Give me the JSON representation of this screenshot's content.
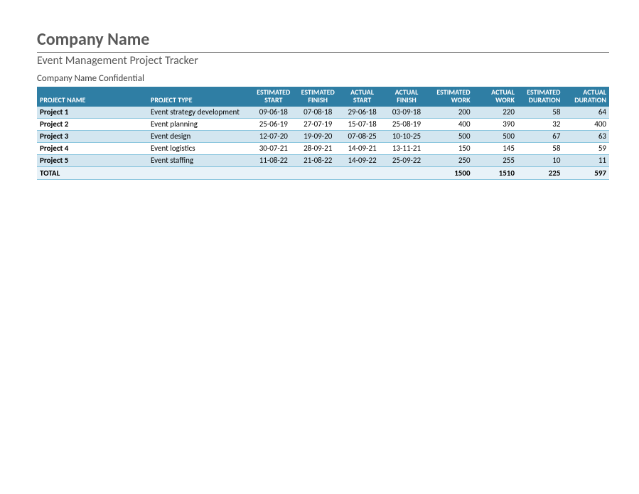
{
  "header": {
    "company": "Company Name",
    "subtitle": "Event Management Project Tracker",
    "confidential": "Company Name Confidential"
  },
  "colors": {
    "header_accent": "#595959",
    "table_header_bg": "#2f7ea4",
    "table_header_fg": "#ffffff",
    "row_odd_bg": "#d3e6f0",
    "row_even_bg": "#ffffff",
    "row_border": "#8cc6de",
    "total_bg": "#e8f2f8"
  },
  "typography": {
    "font_family": "Calibri",
    "company_fontsize_pt": 18,
    "subtitle_fontsize_pt": 12,
    "table_header_fontsize_pt": 7.5,
    "table_body_fontsize_pt": 8.5
  },
  "table": {
    "columns": [
      "PROJECT NAME",
      "PROJECT TYPE",
      "ESTIMATED START",
      "ESTIMATED FINISH",
      "ACTUAL START",
      "ACTUAL FINISH",
      "ESTIMATED WORK",
      "ACTUAL WORK",
      "ESTIMATED DURATION",
      "ACTUAL DURATION"
    ],
    "column_align": [
      "left",
      "left",
      "center",
      "center",
      "center",
      "center",
      "right",
      "right",
      "right",
      "right"
    ],
    "rows": [
      {
        "name": "Project 1",
        "type": "Event strategy development",
        "est_start": "09-06-18",
        "est_finish": "07-08-18",
        "act_start": "29-06-18",
        "act_finish": "03-09-18",
        "est_work": 200,
        "act_work": 220,
        "est_dur": 58,
        "act_dur": 64
      },
      {
        "name": "Project 2",
        "type": "Event planning",
        "est_start": "25-06-19",
        "est_finish": "27-07-19",
        "act_start": "15-07-18",
        "act_finish": "25-08-19",
        "est_work": 400,
        "act_work": 390,
        "est_dur": 32,
        "act_dur": 400
      },
      {
        "name": "Project 3",
        "type": "Event design",
        "est_start": "12-07-20",
        "est_finish": "19-09-20",
        "act_start": "07-08-25",
        "act_finish": "10-10-25",
        "est_work": 500,
        "act_work": 500,
        "est_dur": 67,
        "act_dur": 63
      },
      {
        "name": "Project 4",
        "type": "Event logistics",
        "est_start": "30-07-21",
        "est_finish": "28-09-21",
        "act_start": "14-09-21",
        "act_finish": "13-11-21",
        "est_work": 150,
        "act_work": 145,
        "est_dur": 58,
        "act_dur": 59
      },
      {
        "name": "Project 5",
        "type": "Event staffing",
        "est_start": "11-08-22",
        "est_finish": "21-08-22",
        "act_start": "14-09-22",
        "act_finish": "25-09-22",
        "est_work": 250,
        "act_work": 255,
        "est_dur": 10,
        "act_dur": 11
      }
    ],
    "totals": {
      "label": "TOTAL",
      "est_work": 1500,
      "act_work": 1510,
      "est_dur": 225,
      "act_dur": 597
    }
  }
}
